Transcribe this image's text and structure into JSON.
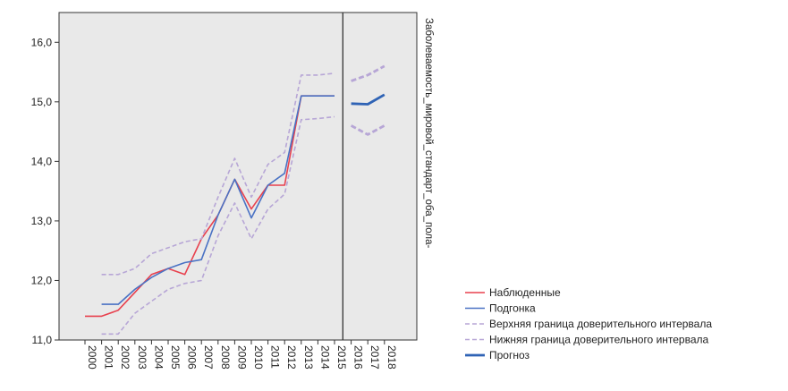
{
  "chart_data": {
    "type": "line",
    "ylabel": "Заболеваемость_мировой_стандарт_оба_пола-",
    "ylim": [
      11.0,
      16.5
    ],
    "yticks": [
      "11,0",
      "12,0",
      "13,0",
      "14,0",
      "15,0",
      "16,0"
    ],
    "categories": [
      "2000",
      "2001",
      "2002",
      "2003",
      "2004",
      "2005",
      "2006",
      "2007",
      "2008",
      "2009",
      "2010",
      "2011",
      "2012",
      "2013",
      "2014",
      "2015",
      "2016",
      "2017",
      "2018"
    ],
    "forecast_start": "2016",
    "grid": false,
    "legend_position": "bottom-right",
    "colors": {
      "observed": "#e8414e",
      "fit": "#4a72c4",
      "upper": "#b7a6d6",
      "lower": "#b7a6d6",
      "forecast": "#2f63b5",
      "plot_bg": "#e9e9e9"
    },
    "series": [
      {
        "name": "Наблюденные",
        "values": [
          11.4,
          11.4,
          11.5,
          11.8,
          12.1,
          12.2,
          12.1,
          12.7,
          13.1,
          13.7,
          13.2,
          13.6,
          13.6,
          15.1,
          15.1,
          15.1,
          null,
          null,
          null
        ]
      },
      {
        "name": "Подгонка",
        "values": [
          null,
          11.6,
          11.6,
          11.85,
          12.05,
          12.2,
          12.3,
          12.35,
          13.1,
          13.7,
          13.05,
          13.6,
          13.8,
          15.1,
          15.1,
          15.1,
          null,
          null,
          null
        ]
      },
      {
        "name": "Верхняя граница доверительного интервала",
        "values": [
          null,
          12.1,
          12.1,
          12.2,
          12.45,
          12.55,
          12.65,
          12.7,
          13.4,
          14.05,
          13.4,
          13.95,
          14.15,
          15.45,
          15.45,
          15.48,
          15.35,
          15.45,
          15.6
        ]
      },
      {
        "name": "Нижняя граница доверительного интервала",
        "values": [
          null,
          11.1,
          11.1,
          11.45,
          11.65,
          11.85,
          11.95,
          12.0,
          12.75,
          13.3,
          12.7,
          13.2,
          13.45,
          14.7,
          14.72,
          14.75,
          14.6,
          14.45,
          14.6
        ]
      },
      {
        "name": "Прогноз",
        "values": [
          null,
          null,
          null,
          null,
          null,
          null,
          null,
          null,
          null,
          null,
          null,
          null,
          null,
          null,
          null,
          null,
          14.97,
          14.96,
          15.12
        ]
      }
    ]
  }
}
